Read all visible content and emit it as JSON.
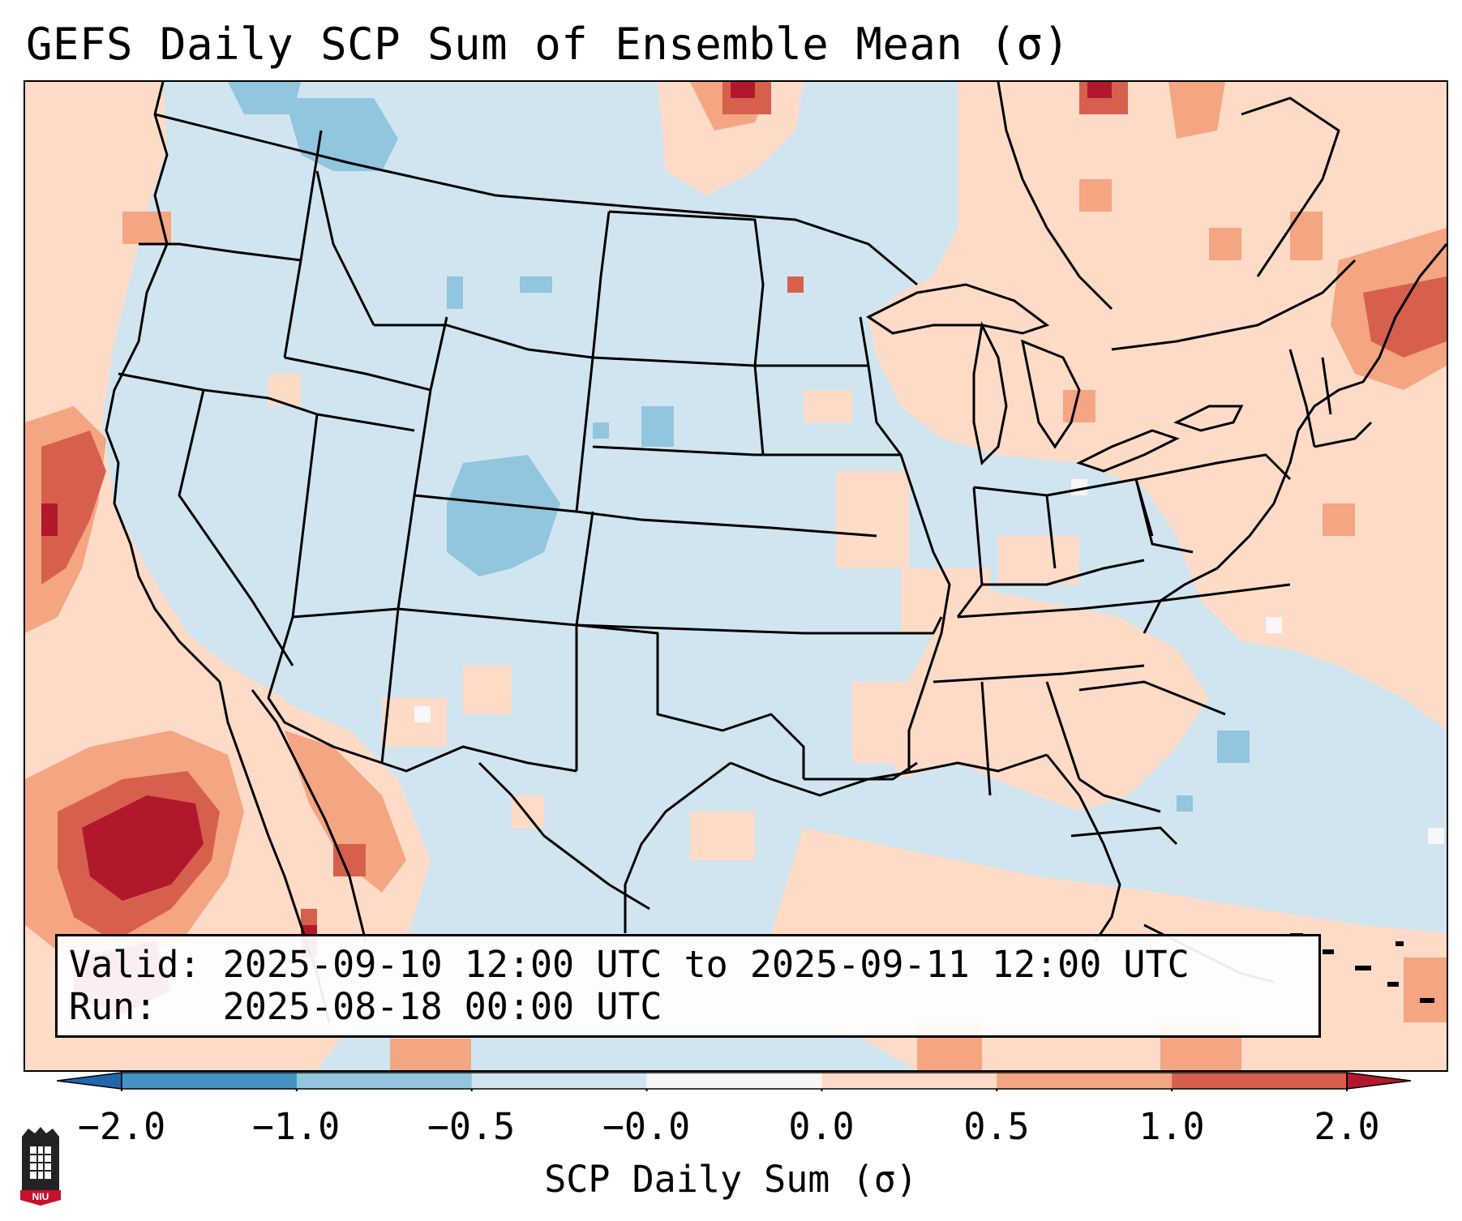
{
  "title": "GEFS Daily SCP Sum of Ensemble Mean (σ)",
  "valid_text": "Valid: 2025-09-10 12:00 UTC to 2025-09-11 12:00 UTC",
  "run_text": "Run:   2025-08-18 00:00 UTC",
  "colorbar": {
    "label": "SCP Daily Sum (σ)",
    "tick_labels": [
      "−2.0",
      "−1.0",
      "−0.5",
      "−0.0",
      "0.0",
      "0.5",
      "1.0",
      "2.0"
    ],
    "bins": [
      {
        "from": -2.0,
        "to": -1.0,
        "color": "#4393c3"
      },
      {
        "from": -1.0,
        "to": -0.5,
        "color": "#92c5de"
      },
      {
        "from": -0.5,
        "to": -0.0,
        "color": "#d1e5f0"
      },
      {
        "from": -0.0,
        "to": 0.0,
        "color": "#f7f7f7"
      },
      {
        "from": 0.0,
        "to": 0.5,
        "color": "#fddbc7"
      },
      {
        "from": 0.5,
        "to": 1.0,
        "color": "#f4a582"
      },
      {
        "from": 1.0,
        "to": 2.0,
        "color": "#d6604d"
      }
    ],
    "under_color": "#2166ac",
    "over_color": "#b2182b"
  },
  "map": {
    "region": "Continental United States",
    "projection": "Lambert Conformal",
    "variable": "SCP daily sum anomaly",
    "units": "σ",
    "colors": {
      "background": "#d1e5f0",
      "weak_positive": "#fddbc7",
      "moderate_positive": "#f4a582",
      "strong_positive": "#d6604d",
      "extreme_positive": "#b2182b",
      "moderate_negative": "#92c5de",
      "strong_negative": "#4393c3"
    }
  },
  "logo": {
    "text": "NIU"
  }
}
